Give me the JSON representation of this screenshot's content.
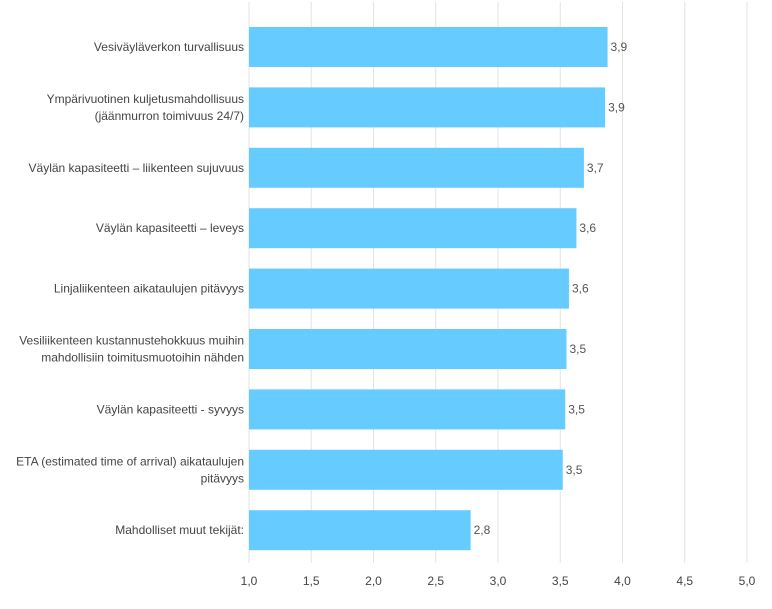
{
  "chart_data": {
    "type": "bar",
    "orientation": "horizontal",
    "categories": [
      [
        "Vesiväyläverkon turvallisuus"
      ],
      [
        "Ympärivuotinen kuljetusmahdollisuus",
        "(jäänmurron toimivuus 24/7)"
      ],
      [
        "Väylän kapasiteetti – liikenteen sujuvuus"
      ],
      [
        "Väylän kapasiteetti – leveys"
      ],
      [
        "Linjaliikenteen aikataulujen pitävyys"
      ],
      [
        "Vesiliikenteen kustannustehokkuus muihin",
        "mahdollisiin toimitusmuotoihin nähden"
      ],
      [
        "Väylän kapasiteetti - syvyys"
      ],
      [
        "ETA (estimated time of arrival) aikataulujen",
        "pitävyys"
      ],
      [
        "Mahdolliset muut tekijät:"
      ]
    ],
    "values": [
      3.88,
      3.86,
      3.69,
      3.63,
      3.57,
      3.55,
      3.54,
      3.52,
      2.78
    ],
    "value_labels": [
      "3,9",
      "3,9",
      "3,7",
      "3,6",
      "3,6",
      "3,5",
      "3,5",
      "3,5",
      "2,8"
    ],
    "x_ticks": [
      1.0,
      1.5,
      2.0,
      2.5,
      3.0,
      3.5,
      4.0,
      4.5,
      5.0
    ],
    "x_tick_labels": [
      "1,0",
      "1,5",
      "2,0",
      "2,5",
      "3,0",
      "3,5",
      "4,0",
      "4,5",
      "5,0"
    ],
    "xlim": [
      1.0,
      5.0
    ],
    "grid": true,
    "legend": "none",
    "title": "",
    "xlabel": "",
    "ylabel": ""
  },
  "colors": {
    "bar": "#66ccff",
    "grid": "#e3e3e3",
    "label_text": "#444444",
    "value_text": "#555555"
  }
}
